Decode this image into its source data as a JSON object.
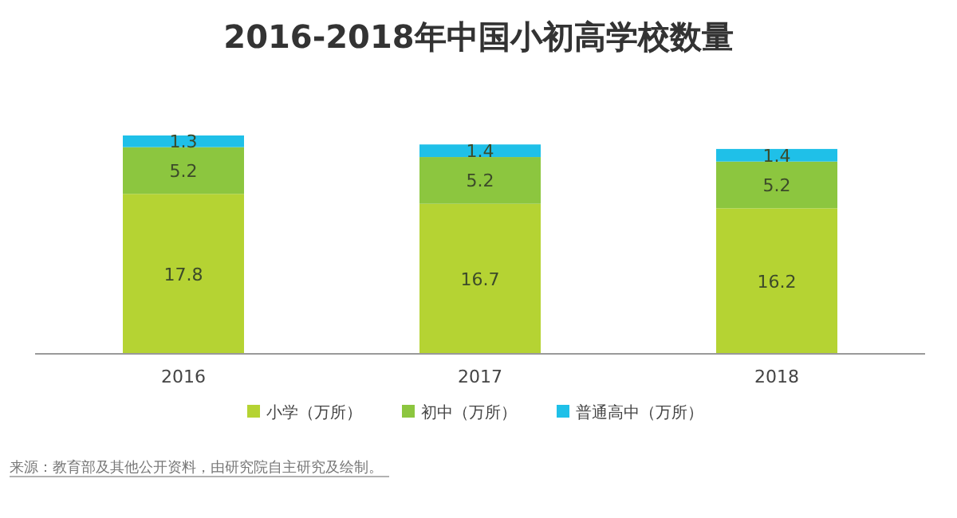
{
  "chart_data": {
    "type": "bar",
    "title": "2016-2018年中国小初高学校数量",
    "stacked": true,
    "data_labels": true,
    "legend": "bottom",
    "categories": [
      "2016",
      "2017",
      "2018"
    ],
    "series": [
      {
        "name": "小学（万所）",
        "color": "#b5d333",
        "values": [
          17.8,
          16.7,
          16.2
        ]
      },
      {
        "name": "初中（万所）",
        "color": "#8cc63f",
        "values": [
          5.2,
          5.2,
          5.2
        ]
      },
      {
        "name": "普通高中（万所）",
        "color": "#1fc0e8",
        "values": [
          1.3,
          1.4,
          1.4
        ]
      }
    ],
    "annotations": [
      "来源：教育部及其他公开资料，由研究院自主研究及绘制。"
    ]
  }
}
